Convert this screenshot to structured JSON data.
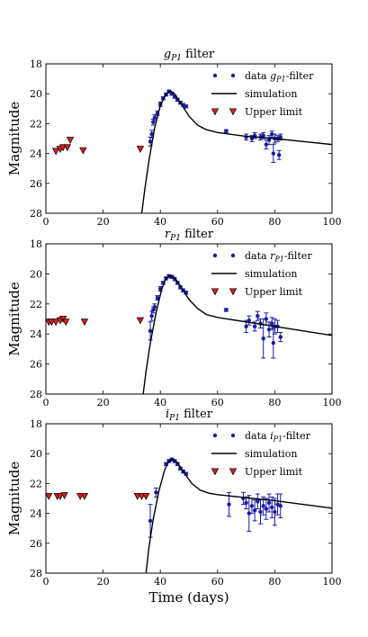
{
  "chart_data": [
    {
      "type": "scatter",
      "title": "g_P1 filter",
      "title_main": "g",
      "title_sub": "P1",
      "title_rest": " filter",
      "xlabel": "",
      "ylabel": "Magnitude",
      "xlim": [
        0,
        100
      ],
      "ylim": [
        28,
        18
      ],
      "y_inverted": true,
      "xticks": [
        "0",
        "20",
        "40",
        "60",
        "80",
        "100"
      ],
      "yticks": [
        "18",
        "20",
        "22",
        "24",
        "26",
        "28"
      ],
      "legend_position": "top-right",
      "colors": {
        "data": "#1a1aa8",
        "simulation": "#000000",
        "upper": "#d42020"
      },
      "legend": {
        "data_prefix": "data ",
        "data_main": "g",
        "data_sub": "P1",
        "data_suffix": "-filter",
        "simulation": "simulation",
        "upper": "Upper limit"
      },
      "series": [
        {
          "name": "data g_P1-filter",
          "kind": "data",
          "points": [
            {
              "x": 36.5,
              "y": 23.2,
              "err": 0.3
            },
            {
              "x": 37.0,
              "y": 22.7,
              "err": 0.25
            },
            {
              "x": 37.5,
              "y": 21.9,
              "err": 0.2
            },
            {
              "x": 38.0,
              "y": 21.6,
              "err": 0.2
            },
            {
              "x": 39.0,
              "y": 21.3,
              "err": 0.15
            },
            {
              "x": 40.0,
              "y": 20.7,
              "err": 0.15
            },
            {
              "x": 41.0,
              "y": 20.3,
              "err": 0.1
            },
            {
              "x": 42.0,
              "y": 20.05,
              "err": 0.1
            },
            {
              "x": 43.0,
              "y": 19.85,
              "err": 0.1
            },
            {
              "x": 44.0,
              "y": 20.0,
              "err": 0.1
            },
            {
              "x": 45.0,
              "y": 20.2,
              "err": 0.1
            },
            {
              "x": 46.0,
              "y": 20.4,
              "err": 0.1
            },
            {
              "x": 47.0,
              "y": 20.6,
              "err": 0.1
            },
            {
              "x": 48.0,
              "y": 20.75,
              "err": 0.1
            },
            {
              "x": 49.0,
              "y": 20.85,
              "err": 0.1
            },
            {
              "x": 63.0,
              "y": 22.5,
              "err": 0.1
            },
            {
              "x": 70.0,
              "y": 22.9,
              "err": 0.2
            },
            {
              "x": 72.0,
              "y": 23.0,
              "err": 0.2
            },
            {
              "x": 73.0,
              "y": 22.8,
              "err": 0.2
            },
            {
              "x": 75.0,
              "y": 22.9,
              "err": 0.2
            },
            {
              "x": 76.0,
              "y": 22.8,
              "err": 0.2
            },
            {
              "x": 77.0,
              "y": 23.4,
              "err": 0.3
            },
            {
              "x": 78.0,
              "y": 23.1,
              "err": 0.3
            },
            {
              "x": 79.0,
              "y": 22.7,
              "err": 0.2
            },
            {
              "x": 79.5,
              "y": 24.0,
              "err": 0.6
            },
            {
              "x": 80.0,
              "y": 23.0,
              "err": 0.3
            },
            {
              "x": 81.0,
              "y": 23.0,
              "err": 0.2
            },
            {
              "x": 81.5,
              "y": 24.1,
              "err": 0.3
            },
            {
              "x": 82.0,
              "y": 22.9,
              "err": 0.2
            }
          ]
        },
        {
          "name": "simulation",
          "kind": "line",
          "points": [
            {
              "x": 33.5,
              "y": 28.0
            },
            {
              "x": 34.5,
              "y": 26.5
            },
            {
              "x": 36,
              "y": 24.5
            },
            {
              "x": 38,
              "y": 22.3
            },
            {
              "x": 40,
              "y": 20.8
            },
            {
              "x": 42,
              "y": 20.0
            },
            {
              "x": 43.5,
              "y": 19.8
            },
            {
              "x": 45,
              "y": 20.0
            },
            {
              "x": 47,
              "y": 20.6
            },
            {
              "x": 50,
              "y": 21.5
            },
            {
              "x": 53,
              "y": 22.1
            },
            {
              "x": 56,
              "y": 22.4
            },
            {
              "x": 60,
              "y": 22.6
            },
            {
              "x": 70,
              "y": 22.85
            },
            {
              "x": 80,
              "y": 23.0
            },
            {
              "x": 90,
              "y": 23.2
            },
            {
              "x": 100,
              "y": 23.4
            }
          ]
        },
        {
          "name": "Upper limit",
          "kind": "upper",
          "points": [
            {
              "x": 3.5,
              "y": 23.85
            },
            {
              "x": 5.0,
              "y": 23.7
            },
            {
              "x": 6.0,
              "y": 23.6
            },
            {
              "x": 7.5,
              "y": 23.6
            },
            {
              "x": 8.5,
              "y": 23.1
            },
            {
              "x": 13.0,
              "y": 23.8
            },
            {
              "x": 33.0,
              "y": 23.7
            }
          ]
        }
      ]
    },
    {
      "type": "scatter",
      "title": "r_P1 filter",
      "title_main": "r",
      "title_sub": "P1",
      "title_rest": " filter",
      "xlabel": "",
      "ylabel": "Magnitude",
      "xlim": [
        0,
        100
      ],
      "ylim": [
        28,
        18
      ],
      "y_inverted": true,
      "xticks": [
        "0",
        "20",
        "40",
        "60",
        "80",
        "100"
      ],
      "yticks": [
        "18",
        "20",
        "22",
        "24",
        "26",
        "28"
      ],
      "legend_position": "top-right",
      "colors": {
        "data": "#1a1aa8",
        "simulation": "#000000",
        "upper": "#d42020"
      },
      "legend": {
        "data_prefix": "data ",
        "data_main": "r",
        "data_sub": "P1",
        "data_suffix": "-filter",
        "simulation": "simulation",
        "upper": "Upper limit"
      },
      "series": [
        {
          "name": "data r_P1-filter",
          "kind": "data",
          "points": [
            {
              "x": 36.5,
              "y": 23.8,
              "err": 0.6
            },
            {
              "x": 37.0,
              "y": 22.8,
              "err": 0.3
            },
            {
              "x": 37.5,
              "y": 22.4,
              "err": 0.2
            },
            {
              "x": 38.0,
              "y": 22.2,
              "err": 0.2
            },
            {
              "x": 39.0,
              "y": 21.6,
              "err": 0.15
            },
            {
              "x": 40.0,
              "y": 21.0,
              "err": 0.15
            },
            {
              "x": 41.0,
              "y": 20.6,
              "err": 0.1
            },
            {
              "x": 42.0,
              "y": 20.3,
              "err": 0.1
            },
            {
              "x": 43.0,
              "y": 20.15,
              "err": 0.1
            },
            {
              "x": 44.0,
              "y": 20.2,
              "err": 0.1
            },
            {
              "x": 45.0,
              "y": 20.35,
              "err": 0.1
            },
            {
              "x": 46.0,
              "y": 20.6,
              "err": 0.1
            },
            {
              "x": 47.0,
              "y": 20.9,
              "err": 0.1
            },
            {
              "x": 48.0,
              "y": 21.1,
              "err": 0.1
            },
            {
              "x": 49.0,
              "y": 21.25,
              "err": 0.1
            },
            {
              "x": 63.0,
              "y": 22.4,
              "err": 0.1
            },
            {
              "x": 70.0,
              "y": 23.5,
              "err": 0.4
            },
            {
              "x": 71.0,
              "y": 23.1,
              "err": 0.3
            },
            {
              "x": 73.0,
              "y": 23.5,
              "err": 0.3
            },
            {
              "x": 74.0,
              "y": 22.8,
              "err": 0.3
            },
            {
              "x": 75.0,
              "y": 23.3,
              "err": 0.3
            },
            {
              "x": 76.0,
              "y": 24.3,
              "err": 1.3
            },
            {
              "x": 77.0,
              "y": 23.0,
              "err": 0.4
            },
            {
              "x": 78.0,
              "y": 23.7,
              "err": 0.5
            },
            {
              "x": 79.0,
              "y": 23.3,
              "err": 0.4
            },
            {
              "x": 79.5,
              "y": 24.6,
              "err": 1.0
            },
            {
              "x": 80.0,
              "y": 23.5,
              "err": 0.5
            },
            {
              "x": 81.0,
              "y": 23.5,
              "err": 0.4
            },
            {
              "x": 82.0,
              "y": 24.2,
              "err": 0.3
            }
          ]
        },
        {
          "name": "simulation",
          "kind": "line",
          "points": [
            {
              "x": 34,
              "y": 28.0
            },
            {
              "x": 35,
              "y": 26.5
            },
            {
              "x": 36.5,
              "y": 24.6
            },
            {
              "x": 38.5,
              "y": 22.6
            },
            {
              "x": 40.5,
              "y": 21.0
            },
            {
              "x": 42,
              "y": 20.3
            },
            {
              "x": 43.5,
              "y": 20.1
            },
            {
              "x": 45,
              "y": 20.25
            },
            {
              "x": 47,
              "y": 20.8
            },
            {
              "x": 50,
              "y": 21.7
            },
            {
              "x": 53,
              "y": 22.3
            },
            {
              "x": 56,
              "y": 22.7
            },
            {
              "x": 60,
              "y": 22.9
            },
            {
              "x": 70,
              "y": 23.2
            },
            {
              "x": 80,
              "y": 23.5
            },
            {
              "x": 90,
              "y": 23.8
            },
            {
              "x": 100,
              "y": 24.1
            }
          ]
        },
        {
          "name": "Upper limit",
          "kind": "upper",
          "points": [
            {
              "x": 1.0,
              "y": 23.2
            },
            {
              "x": 2.0,
              "y": 23.2
            },
            {
              "x": 3.5,
              "y": 23.2
            },
            {
              "x": 5.0,
              "y": 23.1
            },
            {
              "x": 6.0,
              "y": 23.0
            },
            {
              "x": 7.0,
              "y": 23.2
            },
            {
              "x": 13.5,
              "y": 23.2
            },
            {
              "x": 33.0,
              "y": 23.1
            }
          ]
        }
      ]
    },
    {
      "type": "scatter",
      "title": "i_P1 filter",
      "title_main": "i",
      "title_sub": "P1",
      "title_rest": " filter",
      "xlabel": "Time (days)",
      "ylabel": "Magnitude",
      "xlim": [
        0,
        100
      ],
      "ylim": [
        28,
        18
      ],
      "y_inverted": true,
      "xticks": [
        "0",
        "20",
        "40",
        "60",
        "80",
        "100"
      ],
      "yticks": [
        "18",
        "20",
        "22",
        "24",
        "26",
        "28"
      ],
      "legend_position": "top-right",
      "colors": {
        "data": "#1a1aa8",
        "simulation": "#000000",
        "upper": "#d42020"
      },
      "legend": {
        "data_prefix": "data ",
        "data_main": "i",
        "data_sub": "P1",
        "data_suffix": "-filter",
        "simulation": "simulation",
        "upper": "Upper limit"
      },
      "series": [
        {
          "name": "data i_P1-filter",
          "kind": "data",
          "points": [
            {
              "x": 36.5,
              "y": 24.5,
              "err": 1.1
            },
            {
              "x": 38.5,
              "y": 22.6,
              "err": 0.3
            },
            {
              "x": 42.0,
              "y": 20.7,
              "err": 0.1
            },
            {
              "x": 43.0,
              "y": 20.5,
              "err": 0.1
            },
            {
              "x": 44.0,
              "y": 20.4,
              "err": 0.1
            },
            {
              "x": 45.0,
              "y": 20.5,
              "err": 0.1
            },
            {
              "x": 46.0,
              "y": 20.7,
              "err": 0.1
            },
            {
              "x": 47.0,
              "y": 21.0,
              "err": 0.1
            },
            {
              "x": 48.0,
              "y": 21.2,
              "err": 0.1
            },
            {
              "x": 49.0,
              "y": 21.35,
              "err": 0.1
            },
            {
              "x": 64.0,
              "y": 23.4,
              "err": 0.8
            },
            {
              "x": 69.0,
              "y": 23.0,
              "err": 0.4
            },
            {
              "x": 70.0,
              "y": 23.3,
              "err": 0.4
            },
            {
              "x": 71.0,
              "y": 24.0,
              "err": 1.2
            },
            {
              "x": 72.0,
              "y": 23.5,
              "err": 0.5
            },
            {
              "x": 73.0,
              "y": 23.8,
              "err": 0.7
            },
            {
              "x": 74.0,
              "y": 23.2,
              "err": 0.5
            },
            {
              "x": 75.0,
              "y": 23.9,
              "err": 0.8
            },
            {
              "x": 76.0,
              "y": 23.5,
              "err": 0.6
            },
            {
              "x": 77.0,
              "y": 23.7,
              "err": 0.7
            },
            {
              "x": 78.0,
              "y": 23.3,
              "err": 0.6
            },
            {
              "x": 79.0,
              "y": 23.6,
              "err": 0.7
            },
            {
              "x": 80.0,
              "y": 23.9,
              "err": 0.9
            },
            {
              "x": 81.0,
              "y": 23.4,
              "err": 0.7
            },
            {
              "x": 82.0,
              "y": 23.5,
              "err": 0.8
            }
          ]
        },
        {
          "name": "simulation",
          "kind": "line",
          "points": [
            {
              "x": 35,
              "y": 28.0
            },
            {
              "x": 36,
              "y": 26.3
            },
            {
              "x": 37.5,
              "y": 24.4
            },
            {
              "x": 39.5,
              "y": 22.5
            },
            {
              "x": 41.5,
              "y": 21.1
            },
            {
              "x": 43,
              "y": 20.5
            },
            {
              "x": 44.5,
              "y": 20.35
            },
            {
              "x": 46,
              "y": 20.6
            },
            {
              "x": 48,
              "y": 21.2
            },
            {
              "x": 51,
              "y": 22.0
            },
            {
              "x": 54,
              "y": 22.45
            },
            {
              "x": 57,
              "y": 22.65
            },
            {
              "x": 60,
              "y": 22.75
            },
            {
              "x": 70,
              "y": 22.95
            },
            {
              "x": 80,
              "y": 23.15
            },
            {
              "x": 90,
              "y": 23.4
            },
            {
              "x": 100,
              "y": 23.65
            }
          ]
        },
        {
          "name": "Upper limit",
          "kind": "upper",
          "points": [
            {
              "x": 1.0,
              "y": 22.85
            },
            {
              "x": 4.0,
              "y": 22.85
            },
            {
              "x": 5.0,
              "y": 22.85
            },
            {
              "x": 6.5,
              "y": 22.8
            },
            {
              "x": 12.0,
              "y": 22.85
            },
            {
              "x": 13.5,
              "y": 22.85
            },
            {
              "x": 32.0,
              "y": 22.85
            },
            {
              "x": 33.5,
              "y": 22.85
            },
            {
              "x": 35.0,
              "y": 22.85
            }
          ]
        }
      ]
    }
  ]
}
